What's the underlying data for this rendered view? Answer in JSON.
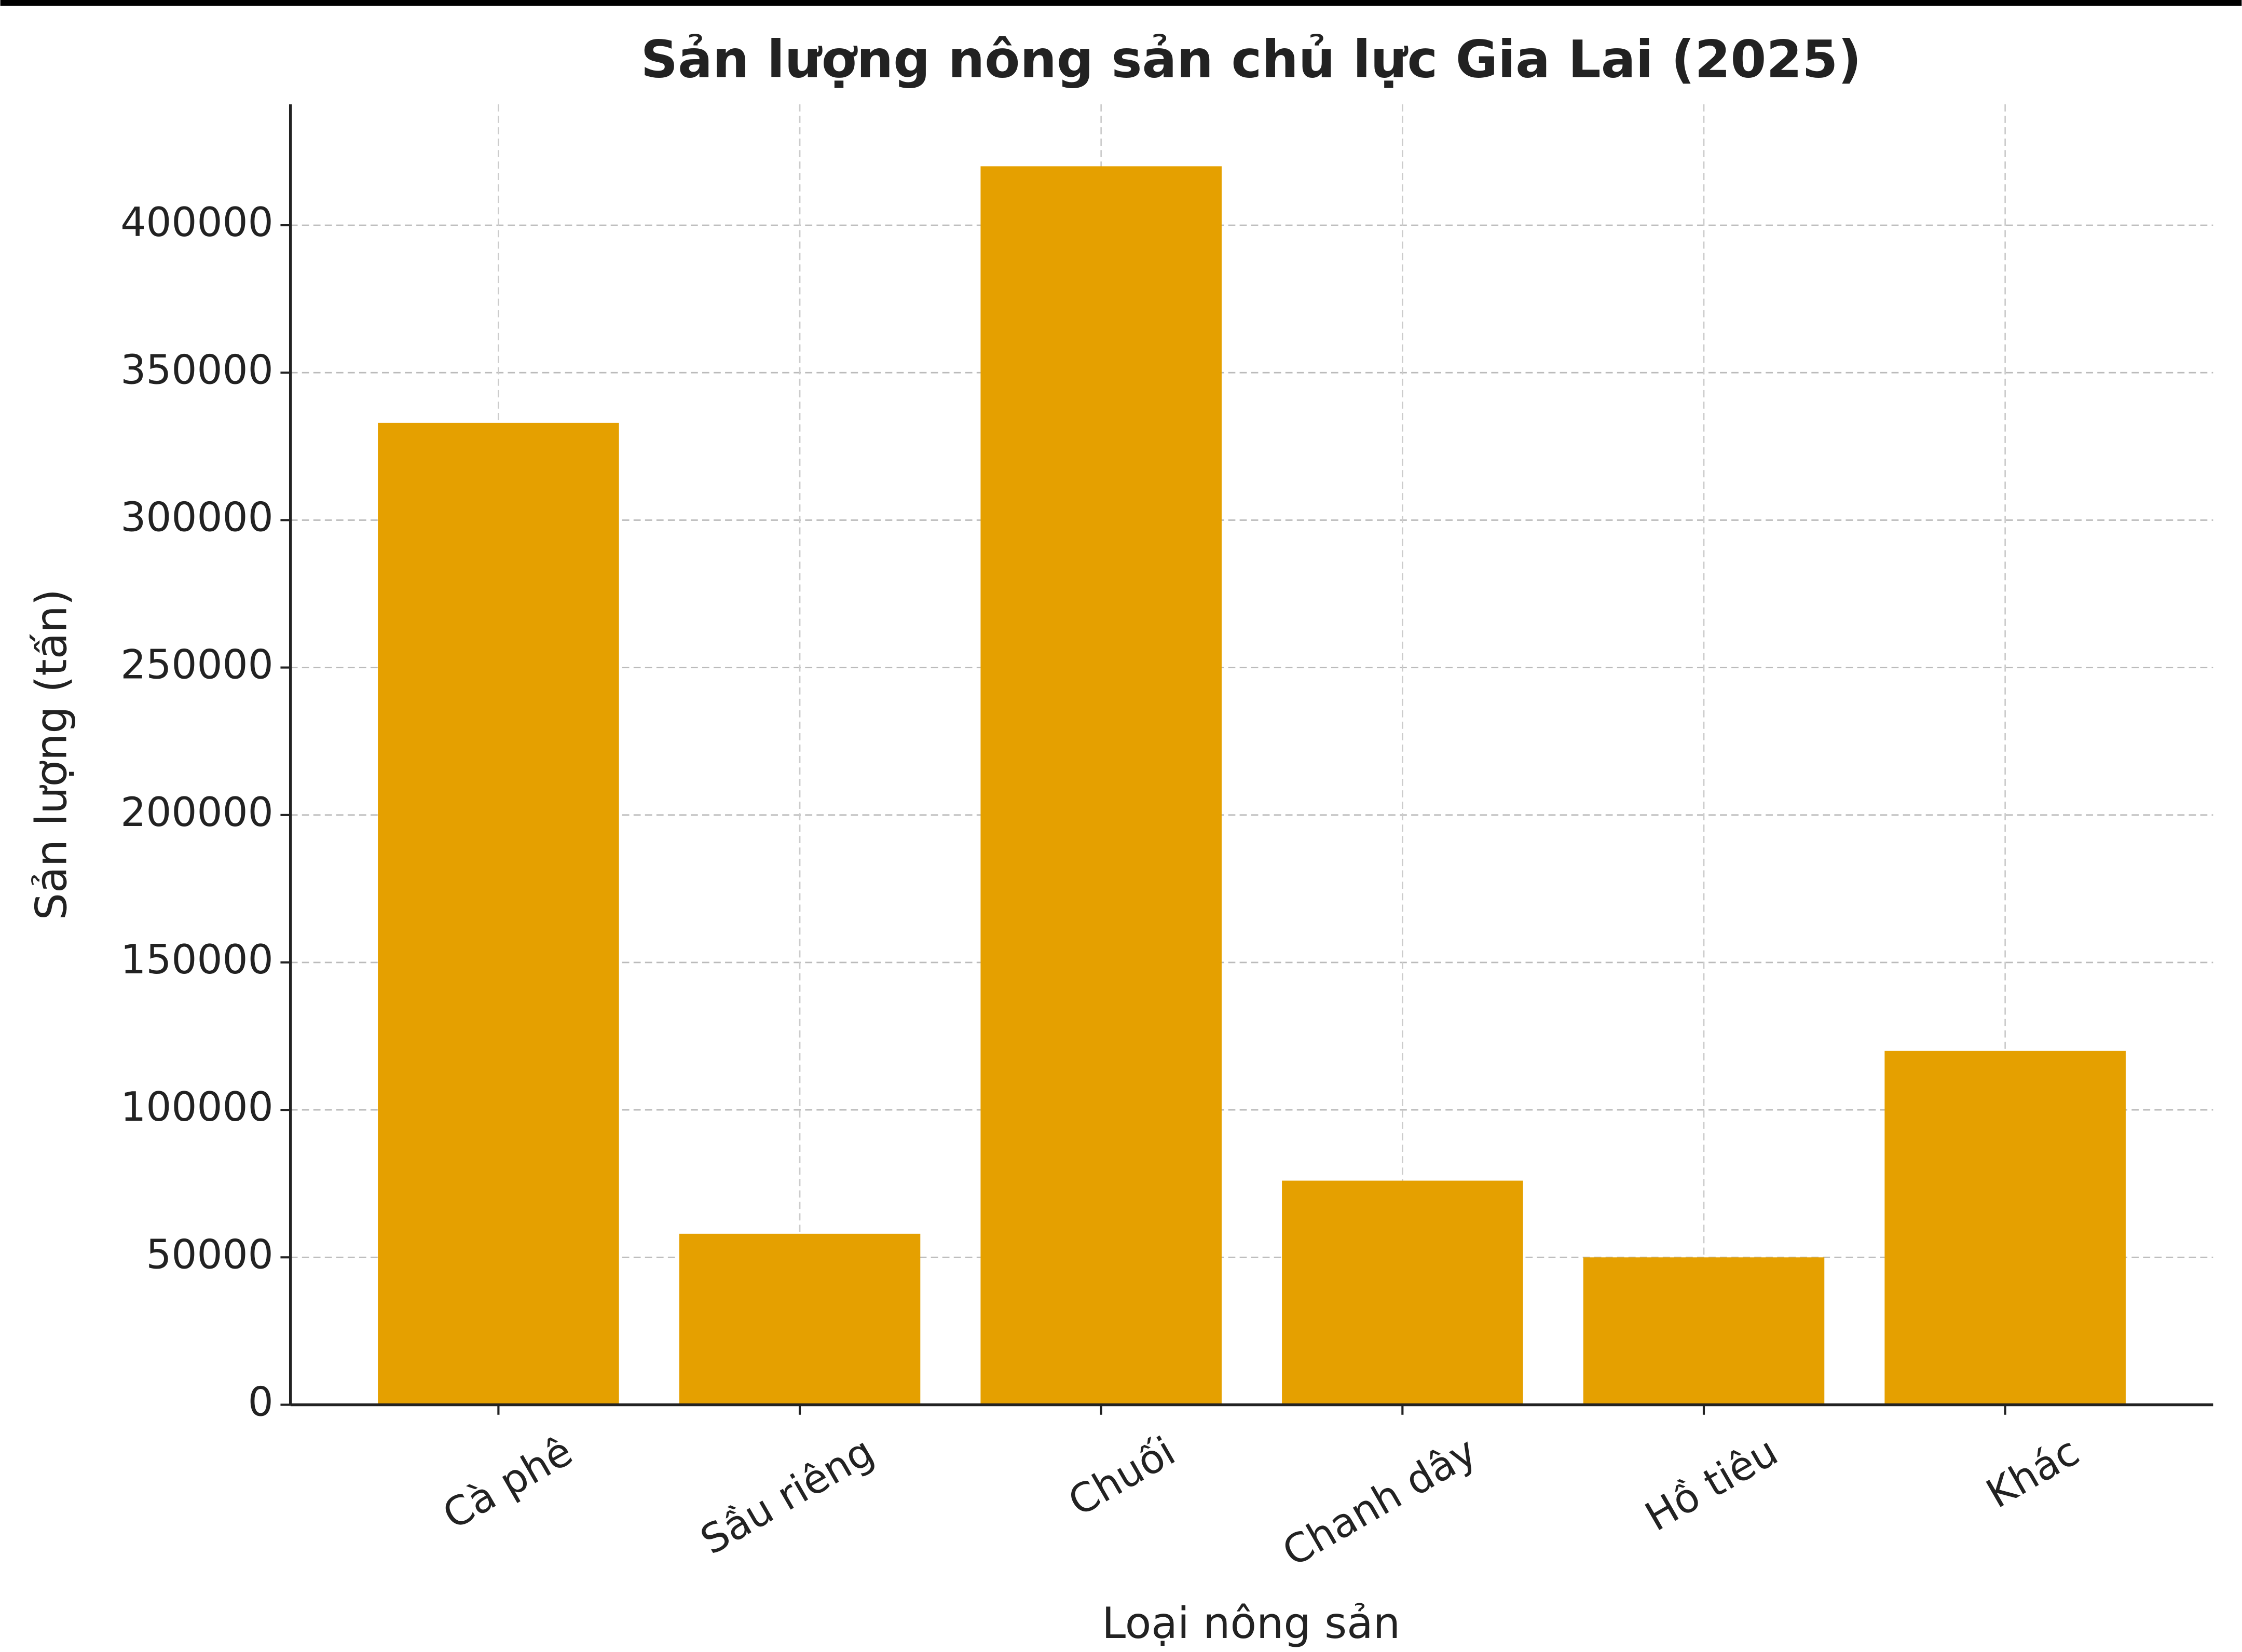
{
  "chart_data": {
    "type": "bar",
    "title": "Sản lượng nông sản chủ lực Gia Lai (2025)",
    "x_label": "Loại nông sản",
    "y_label": "Sản lượng (tấn)",
    "categories": [
      "Cà phê",
      "Sầu riêng",
      "Chuối",
      "Chanh dây",
      "Hồ tiêu",
      "Khác"
    ],
    "values": [
      333000,
      58000,
      420000,
      76000,
      50000,
      120000
    ],
    "color": "#e5a000",
    "ylim": [
      0,
      441000
    ],
    "yticks": [
      0,
      50000,
      100000,
      150000,
      200000,
      250000,
      300000,
      350000,
      400000
    ],
    "grid": true
  }
}
